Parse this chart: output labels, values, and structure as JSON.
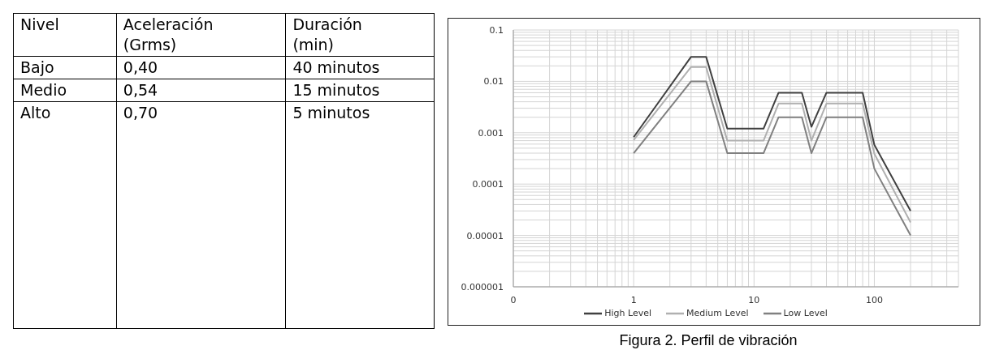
{
  "chart_data": [
    {
      "type": "other",
      "annotations": [
        "Nivel",
        "Aceleración (Grms)",
        "Duración (min)",
        "Bajo",
        "0,40",
        "40 minutos",
        "Medio",
        "0,54",
        "15 minutos",
        "Alto",
        "0,70",
        "5 minutos"
      ]
    },
    {
      "type": "line",
      "title": "Figura 2. Perfil de vibración",
      "x": [
        1,
        3,
        4,
        6,
        12,
        16,
        25,
        30,
        40,
        80,
        100,
        200
      ],
      "series": [
        {
          "name": "High Level",
          "color": "#404040",
          "values": [
            0.00082,
            0.03,
            0.03,
            0.0012,
            0.0012,
            0.006,
            0.006,
            0.0013,
            0.006,
            0.006,
            0.00058,
            3e-05
          ]
        },
        {
          "name": "Medium Level",
          "color": "#b0b0b0",
          "values": [
            0.00072,
            0.019,
            0.019,
            0.0007,
            0.0007,
            0.0037,
            0.0037,
            0.0007,
            0.0037,
            0.0037,
            0.00039,
            1.8e-05
          ]
        },
        {
          "name": "Low Level",
          "color": "#808080",
          "values": [
            0.0004,
            0.01,
            0.01,
            0.0004,
            0.0004,
            0.002,
            0.002,
            0.0004,
            0.002,
            0.002,
            0.0002,
            1e-05
          ]
        }
      ],
      "log": "xy",
      "xlim": [
        0.1,
        500
      ],
      "xticks": [
        {
          "value": 0.1,
          "label": "0"
        },
        {
          "value": 0.2,
          "label": null
        },
        {
          "value": 0.3,
          "label": null
        },
        {
          "value": 0.4,
          "label": null
        },
        {
          "value": 0.5,
          "label": null
        },
        {
          "value": 0.6,
          "label": null
        },
        {
          "value": 0.7,
          "label": null
        },
        {
          "value": 0.8,
          "label": null
        },
        {
          "value": 0.9,
          "label": null
        },
        1,
        {
          "value": 2,
          "label": null
        },
        {
          "value": 3,
          "label": null
        },
        {
          "value": 4,
          "label": null
        },
        {
          "value": 5,
          "label": null
        },
        {
          "value": 6,
          "label": null
        },
        {
          "value": 7,
          "label": null
        },
        {
          "value": 8,
          "label": null
        },
        {
          "value": 9,
          "label": null
        },
        10,
        {
          "value": 20,
          "label": null
        },
        {
          "value": 30,
          "label": null
        },
        {
          "value": 40,
          "label": null
        },
        {
          "value": 50,
          "label": null
        },
        {
          "value": 60,
          "label": null
        },
        {
          "value": 70,
          "label": null
        },
        {
          "value": 80,
          "label": null
        },
        {
          "value": 90,
          "label": null
        },
        100,
        {
          "value": 200,
          "label": null
        },
        {
          "value": 300,
          "label": null
        },
        {
          "value": 400,
          "label": null
        },
        {
          "value": 500,
          "label": null
        }
      ],
      "ylim": [
        1e-06,
        0.1
      ],
      "yticks": [
        {
          "value": 1e-06,
          "label": "0.000001"
        },
        {
          "value": 2e-06,
          "label": null
        },
        {
          "value": 3e-06,
          "label": null
        },
        {
          "value": 4e-06,
          "label": null
        },
        {
          "value": 5e-06,
          "label": null
        },
        {
          "value": 6e-06,
          "label": null
        },
        {
          "value": 7e-06,
          "label": null
        },
        {
          "value": 8e-06,
          "label": null
        },
        {
          "value": 9e-06,
          "label": null
        },
        {
          "value": 1e-05,
          "label": "0.00001"
        },
        {
          "value": 2e-05,
          "label": null
        },
        {
          "value": 3e-05,
          "label": null
        },
        {
          "value": 4e-05,
          "label": null
        },
        {
          "value": 5e-05,
          "label": null
        },
        {
          "value": 6e-05,
          "label": null
        },
        {
          "value": 7e-05,
          "label": null
        },
        {
          "value": 8e-05,
          "label": null
        },
        {
          "value": 9e-05,
          "label": null
        },
        0.0001,
        {
          "value": 0.0002,
          "label": null
        },
        {
          "value": 0.0003,
          "label": null
        },
        {
          "value": 0.0004,
          "label": null
        },
        {
          "value": 0.0005,
          "label": null
        },
        {
          "value": 0.0006,
          "label": null
        },
        {
          "value": 0.0007,
          "label": null
        },
        {
          "value": 0.0008,
          "label": null
        },
        {
          "value": 0.0009,
          "label": null
        },
        0.001,
        {
          "value": 0.002,
          "label": null
        },
        {
          "value": 0.003,
          "label": null
        },
        {
          "value": 0.004,
          "label": null
        },
        {
          "value": 0.005,
          "label": null
        },
        {
          "value": 0.006,
          "label": null
        },
        {
          "value": 0.007,
          "label": null
        },
        {
          "value": 0.008,
          "label": null
        },
        {
          "value": 0.009,
          "label": null
        },
        0.01,
        {
          "value": 0.02,
          "label": null
        },
        {
          "value": 0.03,
          "label": null
        },
        {
          "value": 0.04,
          "label": null
        },
        {
          "value": 0.05,
          "label": null
        },
        {
          "value": 0.06,
          "label": null
        },
        {
          "value": 0.07,
          "label": null
        },
        {
          "value": 0.08,
          "label": null
        },
        {
          "value": 0.09,
          "label": null
        },
        0.1
      ],
      "grid": true,
      "legend": "bottom",
      "marker": "none",
      "line_style": "solid"
    }
  ]
}
